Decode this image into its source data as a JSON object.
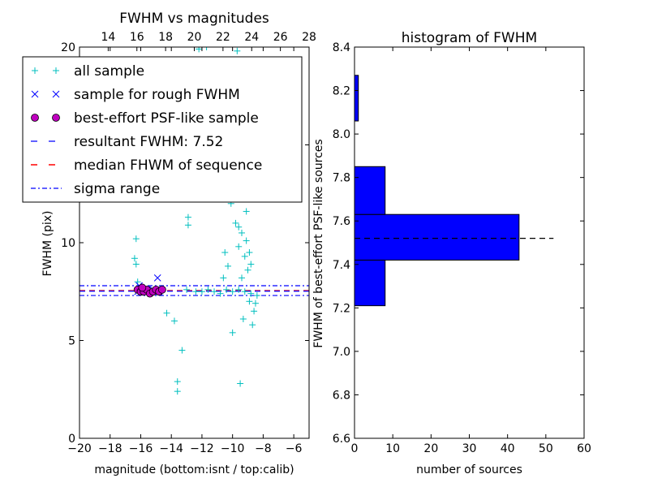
{
  "chart_data": [
    {
      "type": "scatter",
      "title": "FWHM vs magnitudes",
      "xlabel": "magnitude (bottom:isnt / top:calib)",
      "ylabel": "FWHM (pix)",
      "xlim": [
        -20,
        -5
      ],
      "ylim": [
        0,
        20
      ],
      "xticks": [
        -20,
        -18,
        -16,
        -14,
        -12,
        -10,
        -8,
        -6
      ],
      "xtick_labels": [
        "−20",
        "−18",
        "−16",
        "−14",
        "−12",
        "−10",
        "−8",
        "−6"
      ],
      "yticks": [
        0,
        5,
        10,
        15,
        20
      ],
      "ytick_labels": [
        "0",
        "5",
        "10",
        "15",
        "20"
      ],
      "top_axis": {
        "lim": [
          12,
          28
        ],
        "ticks": [
          14,
          16,
          18,
          20,
          22,
          24,
          26,
          28
        ],
        "tick_labels": [
          "14",
          "16",
          "18",
          "20",
          "22",
          "24",
          "26",
          "28"
        ]
      },
      "legend": {
        "placement": "upper-left",
        "entries": [
          "all sample",
          "sample for rough FWHM",
          "best-effort PSF-like sample",
          "resultant FWHM: 7.52",
          "median FHWM of sequence",
          "sigma range"
        ]
      },
      "lines": {
        "resultant_fwhm": 7.52,
        "median_sequence": 7.55,
        "sigma_low": 7.3,
        "sigma_high": 7.8
      },
      "series": [
        {
          "name": "all sample",
          "marker": "+",
          "color": "#00bfbf",
          "points": [
            [
              -16.3,
              10.2
            ],
            [
              -16.4,
              9.2
            ],
            [
              -16.3,
              8.9
            ],
            [
              -16.2,
              8.0
            ],
            [
              -14.3,
              6.4
            ],
            [
              -13.8,
              6.0
            ],
            [
              -13.6,
              2.9
            ],
            [
              -13.6,
              2.4
            ],
            [
              -13.3,
              4.5
            ],
            [
              -12.9,
              10.9
            ],
            [
              -12.9,
              11.3
            ],
            [
              -10.0,
              5.4
            ],
            [
              -9.5,
              2.8
            ],
            [
              -13.0,
              7.6
            ],
            [
              -12.4,
              7.5
            ],
            [
              -12.0,
              7.5
            ],
            [
              -11.6,
              7.6
            ],
            [
              -11.2,
              7.5
            ],
            [
              -10.8,
              7.4
            ],
            [
              -10.4,
              7.6
            ],
            [
              -10.0,
              7.5
            ],
            [
              -9.6,
              7.6
            ],
            [
              -9.2,
              7.5
            ],
            [
              -8.8,
              7.4
            ],
            [
              -8.4,
              7.3
            ],
            [
              -10.1,
              12.0
            ],
            [
              -9.9,
              14.5
            ],
            [
              -9.7,
              16.3
            ],
            [
              -9.5,
              13.2
            ],
            [
              -9.8,
              11.0
            ],
            [
              -9.4,
              10.5
            ],
            [
              -9.2,
              9.3
            ],
            [
              -9.0,
              8.6
            ],
            [
              -8.8,
              8.9
            ],
            [
              -9.6,
              9.8
            ],
            [
              -10.3,
              8.8
            ],
            [
              -10.5,
              9.5
            ],
            [
              -9.3,
              12.4
            ],
            [
              -9.1,
              11.6
            ],
            [
              -9.7,
              19.8
            ],
            [
              -11.7,
              20.0
            ],
            [
              -12.2,
              19.9
            ],
            [
              -10.0,
              17.6
            ],
            [
              -9.9,
              15.6
            ],
            [
              -8.6,
              6.5
            ],
            [
              -8.9,
              7.0
            ],
            [
              -8.5,
              6.9
            ],
            [
              -9.3,
              6.1
            ],
            [
              -8.7,
              5.8
            ],
            [
              -10.2,
              13.3
            ],
            [
              -9.6,
              10.8
            ],
            [
              -9.1,
              10.1
            ],
            [
              -8.9,
              9.5
            ],
            [
              -9.4,
              8.2
            ],
            [
              -10.6,
              8.2
            ]
          ]
        },
        {
          "name": "sample for rough FWHM",
          "marker": "x",
          "color": "#0000ff",
          "points": [
            [
              -16.1,
              7.8
            ],
            [
              -14.9,
              8.2
            ],
            [
              -15.6,
              7.6
            ],
            [
              -14.8,
              7.5
            ],
            [
              -16.2,
              7.5
            ],
            [
              -15.2,
              7.6
            ]
          ]
        },
        {
          "name": "best-effort PSF-like sample",
          "marker": "o",
          "color": "#bf00bf",
          "points": [
            [
              -16.2,
              7.6
            ],
            [
              -16.0,
              7.5
            ],
            [
              -15.8,
              7.5
            ],
            [
              -15.6,
              7.6
            ],
            [
              -15.4,
              7.4
            ],
            [
              -15.2,
              7.5
            ],
            [
              -15.0,
              7.6
            ],
            [
              -14.8,
              7.5
            ],
            [
              -14.6,
              7.6
            ],
            [
              -15.9,
              7.7
            ]
          ]
        }
      ]
    },
    {
      "type": "bar",
      "orientation": "horizontal",
      "title": "histogram of FWHM",
      "xlabel": "number of sources",
      "ylabel": "FWHM of best-effort PSF-like sources",
      "xlim": [
        0,
        60
      ],
      "ylim": [
        6.6,
        8.4
      ],
      "xticks": [
        0,
        10,
        20,
        30,
        40,
        50,
        60
      ],
      "xtick_labels": [
        "0",
        "10",
        "20",
        "30",
        "40",
        "50",
        "60"
      ],
      "yticks": [
        6.6,
        6.8,
        7.0,
        7.2,
        7.4,
        7.6,
        7.8,
        8.0,
        8.2,
        8.4
      ],
      "ytick_labels": [
        "6.6",
        "6.8",
        "7.0",
        "7.2",
        "7.4",
        "7.6",
        "7.8",
        "8.0",
        "8.2",
        "8.4"
      ],
      "bins": [
        {
          "from": 7.21,
          "to": 7.42,
          "value": 8
        },
        {
          "from": 7.42,
          "to": 7.63,
          "value": 43
        },
        {
          "from": 7.63,
          "to": 7.85,
          "value": 8
        },
        {
          "from": 8.06,
          "to": 8.27,
          "value": 1
        }
      ],
      "bar_color": "#0000ff",
      "reference_line": {
        "y": 7.52,
        "x_from": 0,
        "x_to": 52
      }
    }
  ]
}
